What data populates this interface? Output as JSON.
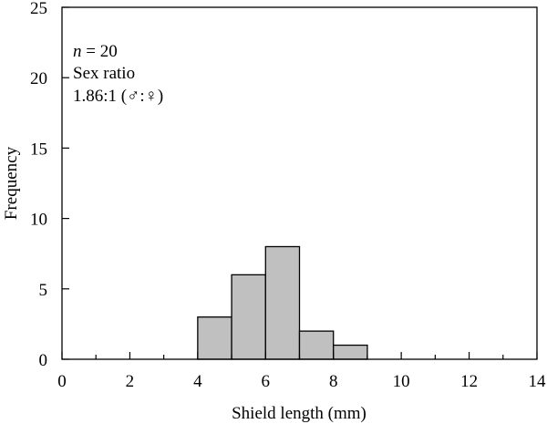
{
  "chart_data": {
    "type": "bar",
    "subtype": "histogram",
    "xlabel": "Shield length (mm)",
    "ylabel": "Frequency",
    "xlim": [
      0,
      14
    ],
    "ylim": [
      0,
      25
    ],
    "x_ticks": [
      0,
      2,
      4,
      6,
      8,
      10,
      12,
      14
    ],
    "x_tick_labels": [
      "0",
      "2",
      "4",
      "6",
      "8",
      "10",
      "12",
      "14"
    ],
    "x_minor_ticks": [
      1,
      3,
      5,
      7,
      9,
      11,
      13
    ],
    "y_ticks": [
      0,
      5,
      10,
      15,
      20,
      25
    ],
    "y_tick_labels": [
      "0",
      "5",
      "10",
      "15",
      "20",
      "25"
    ],
    "bins": [
      {
        "x0": 4,
        "x1": 5,
        "value": 3
      },
      {
        "x0": 5,
        "x1": 6,
        "value": 6
      },
      {
        "x0": 6,
        "x1": 7,
        "value": 8
      },
      {
        "x0": 7,
        "x1": 8,
        "value": 2
      },
      {
        "x0": 8,
        "x1": 9,
        "value": 1
      }
    ],
    "grid": false,
    "legend": "none",
    "bar_color": "#c0c0c0",
    "edge_color": "#000000",
    "annotations": {
      "n_italic": "n",
      "n_value": " = 20",
      "sex_ratio_title": "Sex ratio",
      "sex_ratio": "1.86:1 (♂:♀)"
    }
  }
}
